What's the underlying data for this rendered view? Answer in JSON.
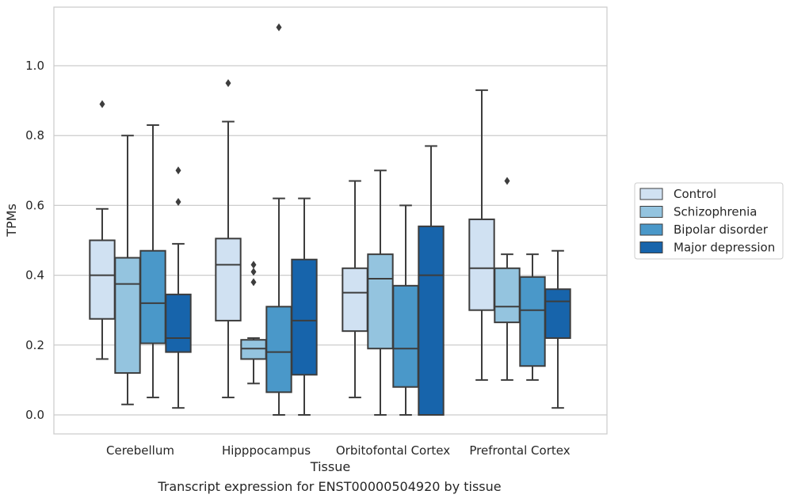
{
  "caption": "Transcript expression for ENST00000504920 by tissue",
  "chart_data": {
    "type": "box",
    "title": "",
    "xlabel": "Tissue",
    "ylabel": "TPMs",
    "ylim": [
      -0.05,
      1.17
    ],
    "yticks": [
      "0.0",
      "0.2",
      "0.4",
      "0.6",
      "0.8",
      "1.0"
    ],
    "grid": true,
    "legend_position": "right",
    "categories": [
      "Cerebellum",
      "Hipppocampus",
      "Orbitofontal Cortex",
      "Prefrontal Cortex"
    ],
    "series": [
      {
        "name": "Control",
        "color": "#d0e1f2",
        "boxes": [
          {
            "whislo": 0.16,
            "q1": 0.275,
            "med": 0.4,
            "q3": 0.5,
            "whishi": 0.59,
            "fliers": [
              0.89
            ]
          },
          {
            "whislo": 0.05,
            "q1": 0.27,
            "med": 0.43,
            "q3": 0.505,
            "whishi": 0.84,
            "fliers": [
              0.95
            ]
          },
          {
            "whislo": 0.05,
            "q1": 0.24,
            "med": 0.35,
            "q3": 0.42,
            "whishi": 0.67,
            "fliers": []
          },
          {
            "whislo": 0.1,
            "q1": 0.3,
            "med": 0.42,
            "q3": 0.56,
            "whishi": 0.93,
            "fliers": []
          }
        ]
      },
      {
        "name": "Schizophrenia",
        "color": "#94c4df",
        "boxes": [
          {
            "whislo": 0.03,
            "q1": 0.12,
            "med": 0.375,
            "q3": 0.45,
            "whishi": 0.8,
            "fliers": []
          },
          {
            "whislo": 0.09,
            "q1": 0.16,
            "med": 0.19,
            "q3": 0.215,
            "whishi": 0.22,
            "fliers": [
              0.38,
              0.41,
              0.43
            ]
          },
          {
            "whislo": 0.0,
            "q1": 0.19,
            "med": 0.39,
            "q3": 0.46,
            "whishi": 0.7,
            "fliers": []
          },
          {
            "whislo": 0.1,
            "q1": 0.265,
            "med": 0.31,
            "q3": 0.42,
            "whishi": 0.46,
            "fliers": [
              0.67
            ]
          }
        ]
      },
      {
        "name": "Bipolar disorder",
        "color": "#4a98c9",
        "boxes": [
          {
            "whislo": 0.05,
            "q1": 0.205,
            "med": 0.32,
            "q3": 0.47,
            "whishi": 0.83,
            "fliers": []
          },
          {
            "whislo": 0.0,
            "q1": 0.065,
            "med": 0.18,
            "q3": 0.31,
            "whishi": 0.62,
            "fliers": [
              1.11
            ]
          },
          {
            "whislo": 0.0,
            "q1": 0.08,
            "med": 0.19,
            "q3": 0.37,
            "whishi": 0.6,
            "fliers": []
          },
          {
            "whislo": 0.1,
            "q1": 0.14,
            "med": 0.3,
            "q3": 0.395,
            "whishi": 0.46,
            "fliers": []
          }
        ]
      },
      {
        "name": "Major depression",
        "color": "#1764ab",
        "boxes": [
          {
            "whislo": 0.02,
            "q1": 0.18,
            "med": 0.22,
            "q3": 0.345,
            "whishi": 0.49,
            "fliers": [
              0.61,
              0.7
            ]
          },
          {
            "whislo": 0.0,
            "q1": 0.115,
            "med": 0.27,
            "q3": 0.445,
            "whishi": 0.62,
            "fliers": []
          },
          {
            "whislo": 0.0,
            "q1": 0.0,
            "med": 0.4,
            "q3": 0.54,
            "whishi": 0.77,
            "fliers": []
          },
          {
            "whislo": 0.02,
            "q1": 0.22,
            "med": 0.325,
            "q3": 0.36,
            "whishi": 0.47,
            "fliers": []
          }
        ]
      }
    ]
  }
}
